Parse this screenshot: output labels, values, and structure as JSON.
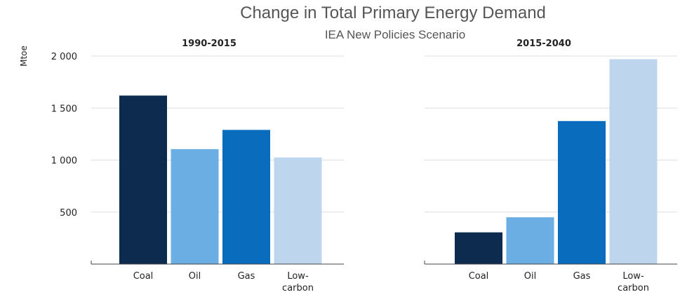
{
  "chart_data": {
    "type": "bar",
    "title": "Change in Total Primary Energy Demand",
    "subtitle": "IEA New Policies Scenario",
    "ylabel": "Mtoe",
    "ylim": [
      0,
      2000
    ],
    "yticks": [
      500,
      1000,
      1500,
      2000
    ],
    "ytick_labels": [
      "500",
      "1 000",
      "1 500",
      "2 000"
    ],
    "grid": true,
    "categories": [
      "Coal",
      "Oil",
      "Gas",
      "Low-carbon"
    ],
    "category_lines": [
      [
        "Coal"
      ],
      [
        "Oil"
      ],
      [
        "Gas"
      ],
      [
        "Low-",
        "carbon"
      ]
    ],
    "colors": [
      "#0d2a4f",
      "#6aaee3",
      "#0a6cbd",
      "#bdd6ee"
    ],
    "panels": [
      {
        "title": "1990-2015",
        "values": [
          1620,
          1105,
          1290,
          1025
        ]
      },
      {
        "title": "2015-2040",
        "values": [
          305,
          450,
          1375,
          1970
        ]
      }
    ]
  }
}
